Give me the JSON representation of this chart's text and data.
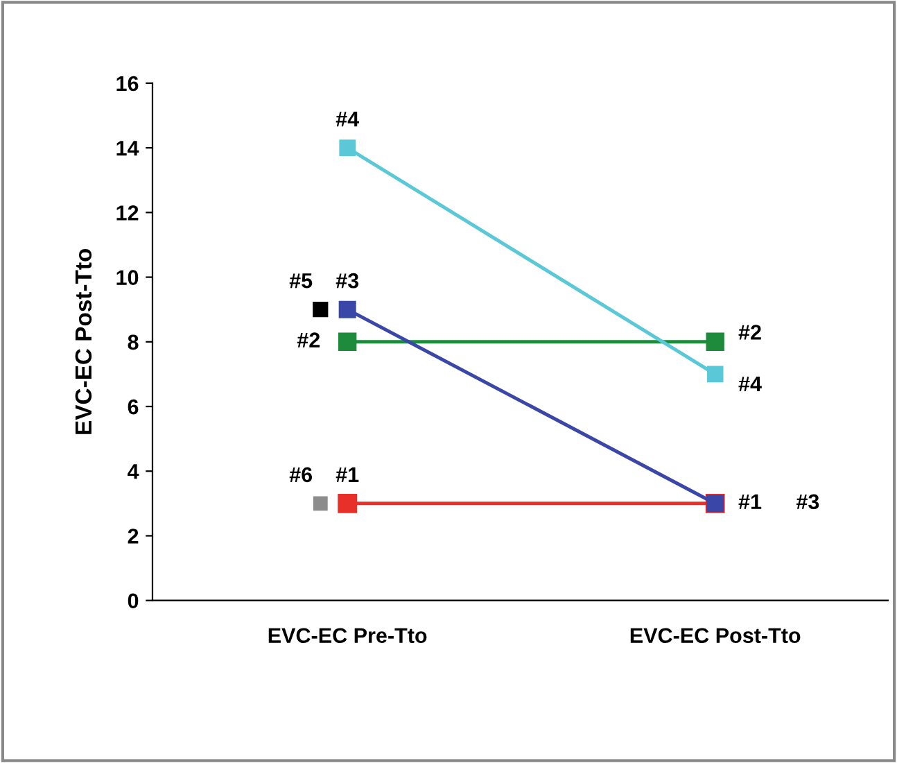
{
  "chart_data": {
    "type": "line",
    "ylabel": "EVC-EC Post-Tto",
    "categories": [
      "EVC-EC Pre-Tto",
      "EVC-EC Post-Tto"
    ],
    "series": [
      {
        "name": "#1",
        "color": "#e8302a",
        "values": [
          3,
          3
        ]
      },
      {
        "name": "#2",
        "color": "#1e8a3c",
        "values": [
          8,
          8
        ]
      },
      {
        "name": "#3",
        "color": "#3a47a8",
        "values": [
          9,
          3
        ]
      },
      {
        "name": "#4",
        "color": "#5bc8d8",
        "values": [
          14,
          7
        ]
      },
      {
        "name": "#5",
        "color": "#000000",
        "values": [
          9,
          null
        ]
      },
      {
        "name": "#6",
        "color": "#8c8c8c",
        "values": [
          3,
          null
        ]
      }
    ],
    "ylim": [
      0,
      16
    ],
    "yticks": [
      0,
      2,
      4,
      6,
      8,
      10,
      12,
      14,
      16
    ],
    "grid": false,
    "legend": false,
    "marker": "square",
    "line_style": "solid"
  }
}
